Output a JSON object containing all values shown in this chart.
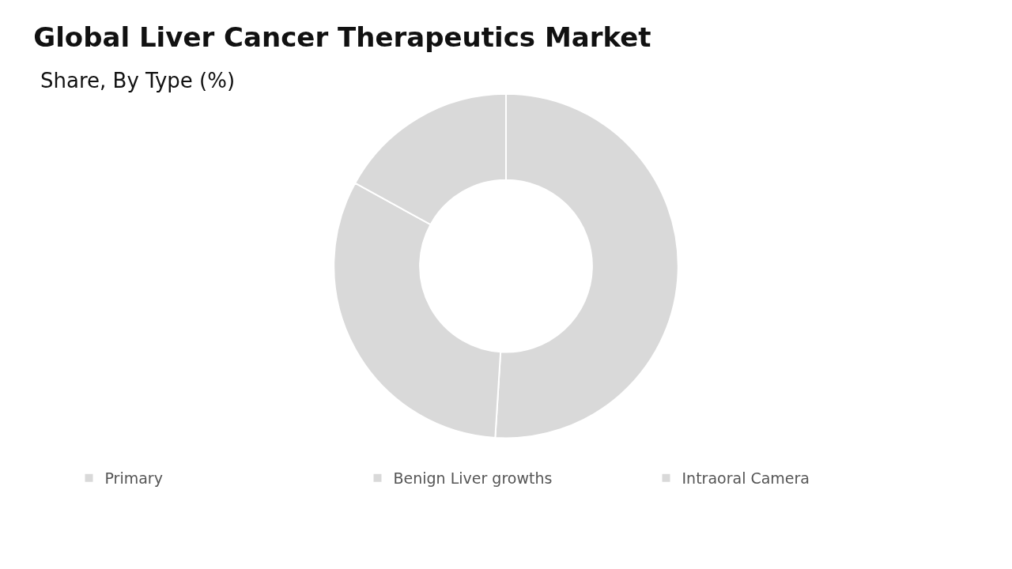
{
  "chart_data": {
    "type": "donut",
    "title": "Global Liver Cancer Therapeutics Market",
    "subtitle": "Share, By Type (%)",
    "categories": [
      "Primary",
      "Benign Liver growths",
      "Intraoral Camera"
    ],
    "values": [
      51,
      32,
      17
    ],
    "colors": [
      "#d9d9d9",
      "#d9d9d9",
      "#d9d9d9"
    ],
    "legend": "bottom"
  }
}
